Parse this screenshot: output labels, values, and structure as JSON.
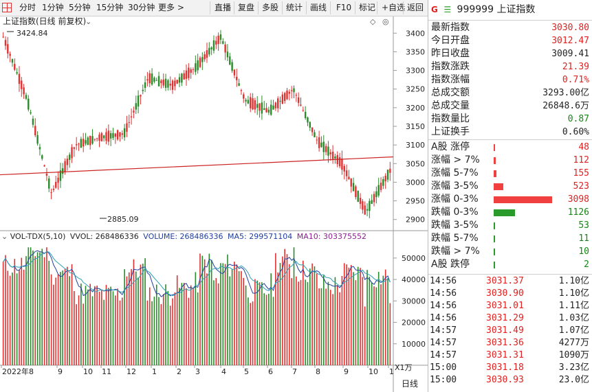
{
  "toolbar": {
    "items": [
      "分时",
      "1分钟",
      "5分钟",
      "15分钟",
      "30分钟",
      "更多 >",
      "直播",
      "复盘",
      "多股",
      "统计",
      "画线",
      "F10",
      "标记",
      "+自选",
      "返回"
    ]
  },
  "chart": {
    "title": "上证指数(日线 前复权)",
    "high_label": "3424.84",
    "low_label": "2885.09",
    "vol_title": "VOL-TDX(5,10)",
    "vvol": "VVOL: 268486336",
    "volume": "VOLUME: 268486336",
    "ma5": "MA5: 299571104",
    "ma10": "MA10: 303375552",
    "unit_label": "X1万",
    "period_label": "日线",
    "date_labels": [
      "2022年8",
      "9",
      "10",
      "11",
      "12",
      "1",
      "2",
      "3",
      "4",
      "5",
      "6",
      "7",
      "8",
      "9",
      "10",
      "1"
    ]
  },
  "chart_data": [
    {
      "type": "candlestick",
      "title": "上证指数(日线 前复权)",
      "y_ticks": [
        2900,
        2950,
        3000,
        3050,
        3100,
        3150,
        3200,
        3250,
        3300,
        3350,
        3400
      ],
      "ylim": [
        2870,
        3430
      ],
      "x_tick_labels": [
        "2022年8",
        "9",
        "10",
        "11",
        "12",
        "1",
        "2",
        "3",
        "4",
        "5",
        "6",
        "7",
        "8",
        "9",
        "10",
        "1"
      ],
      "annotations": {
        "max": 3424.84,
        "min": 2885.09
      },
      "key_points": [
        {
          "x": "2022-08",
          "close": 3390
        },
        {
          "x": "2022-09",
          "close": 3220
        },
        {
          "x": "2022-10",
          "close": 2970
        },
        {
          "x": "2022-11",
          "close": 3100
        },
        {
          "x": "2022-12",
          "close": 3120
        },
        {
          "x": "2023-01",
          "close": 3130
        },
        {
          "x": "2023-02",
          "close": 3280
        },
        {
          "x": "2023-03",
          "close": 3260
        },
        {
          "x": "2023-04",
          "close": 3310
        },
        {
          "x": "2023-05",
          "close": 3390
        },
        {
          "x": "2023-06",
          "close": 3220
        },
        {
          "x": "2023-07",
          "close": 3190
        },
        {
          "x": "2023-08",
          "close": 3250
        },
        {
          "x": "2023-09",
          "close": 3110
        },
        {
          "x": "2023-10",
          "close": 3050
        },
        {
          "x": "2023-12",
          "close": 2920
        },
        {
          "x": "2024-01",
          "close": 3030.8
        }
      ],
      "trendline": {
        "color": "#cc2020"
      }
    },
    {
      "type": "bar",
      "title": "VOL-TDX(5,10)",
      "y_ticks": [
        10000,
        20000,
        30000,
        40000,
        50000
      ],
      "ylim": [
        0,
        57000
      ],
      "unit": "X1万",
      "series": [
        {
          "name": "VOLUME",
          "last": 268486336
        },
        {
          "name": "MA5",
          "last": 299571104
        },
        {
          "name": "MA10",
          "last": 303375552
        }
      ]
    }
  ],
  "panel": {
    "code": "999999",
    "name": "上证指数",
    "stats": [
      {
        "label": "最新指数",
        "value": "3030.80",
        "color": "red"
      },
      {
        "label": "今日开盘",
        "value": "3012.47",
        "color": "red"
      },
      {
        "label": "昨日收盘",
        "value": "3009.41",
        "color": "dark"
      },
      {
        "label": "指数涨跌",
        "value": "21.39",
        "color": "red"
      },
      {
        "label": "指数涨幅",
        "value": "0.71%",
        "color": "red"
      },
      {
        "label": "总成交额",
        "value": "3293.00亿",
        "color": "dark"
      },
      {
        "label": "总成交量",
        "value": "26848.6万",
        "color": "dark"
      },
      {
        "label": "指数量比",
        "value": "0.87",
        "color": "green"
      },
      {
        "label": "上证换手",
        "value": "0.60%",
        "color": "dark"
      }
    ],
    "dist": [
      {
        "label": "A股 涨停",
        "value": "48",
        "color": "red",
        "bar": 48
      },
      {
        "label": "涨幅 > 7%",
        "value": "112",
        "color": "red",
        "bar": 112
      },
      {
        "label": "涨幅 5-7%",
        "value": "155",
        "color": "red",
        "bar": 155
      },
      {
        "label": "涨幅 3-5%",
        "value": "523",
        "color": "red",
        "bar": 523
      },
      {
        "label": "涨幅 0-3%",
        "value": "3098",
        "color": "red",
        "bar": 3098
      },
      {
        "label": "跌幅 0-3%",
        "value": "1126",
        "color": "green",
        "bar": 1126
      },
      {
        "label": "跌幅 3-5%",
        "value": "53",
        "color": "green",
        "bar": 53
      },
      {
        "label": "跌幅 5-7%",
        "value": "11",
        "color": "green",
        "bar": 11
      },
      {
        "label": "跌幅 > 7%",
        "value": "10",
        "color": "green",
        "bar": 10
      },
      {
        "label": "A股 跌停",
        "value": "2",
        "color": "green",
        "bar": 2
      }
    ],
    "trades": [
      {
        "time": "14:56",
        "price": "3031.37",
        "amount": "1.10亿"
      },
      {
        "time": "14:56",
        "price": "3030.90",
        "amount": "1.10亿"
      },
      {
        "time": "14:56",
        "price": "3031.01",
        "amount": "1.11亿"
      },
      {
        "time": "14:56",
        "price": "3031.29",
        "amount": "1.03亿"
      },
      {
        "time": "14:57",
        "price": "3031.49",
        "amount": "1.07亿"
      },
      {
        "time": "14:57",
        "price": "3031.36",
        "amount": "4277万"
      },
      {
        "time": "14:57",
        "price": "3031.31",
        "amount": "1090万"
      },
      {
        "time": "15:00",
        "price": "3031.18",
        "amount": "3.23亿"
      },
      {
        "time": "15:00",
        "price": "3030.93",
        "amount": "23.0亿"
      }
    ]
  },
  "colors": {
    "up": "#e03030",
    "down": "#2a8a2a",
    "trend": "#cc2020",
    "ma5": "#1e3ea0",
    "ma10": "#30a0b0"
  }
}
